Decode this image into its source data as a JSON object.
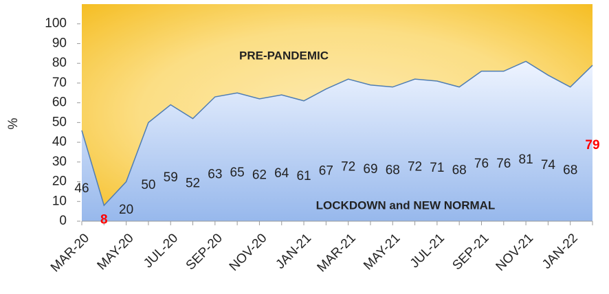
{
  "chart_data": {
    "type": "area",
    "ylabel": "%",
    "annotations": [
      "PRE-PANDEMIC",
      "LOCKDOWN and NEW NORMAL"
    ],
    "categories": [
      "MAR-20",
      null,
      "MAY-20",
      null,
      "JUL-20",
      null,
      "SEP-20",
      null,
      "NOV-20",
      null,
      "JAN-21",
      null,
      "MAR-21",
      null,
      "MAY-21",
      null,
      "JUL-21",
      null,
      "SEP-21",
      null,
      "NOV-21",
      null,
      "JAN-22",
      null
    ],
    "values": [
      46,
      8,
      20,
      50,
      59,
      52,
      63,
      65,
      62,
      64,
      61,
      67,
      72,
      69,
      68,
      72,
      71,
      68,
      76,
      76,
      81,
      74,
      68,
      79
    ],
    "color": "#b7cdf0",
    "upper_color": "#f6c22e",
    "line_color": "#4f7db3",
    "highlight": {
      "indices": [
        1,
        23
      ],
      "color": "#ff0000"
    },
    "ylim": [
      0,
      110
    ],
    "yticks": [
      0,
      10,
      20,
      30,
      40,
      50,
      60,
      70,
      80,
      90,
      100
    ]
  }
}
